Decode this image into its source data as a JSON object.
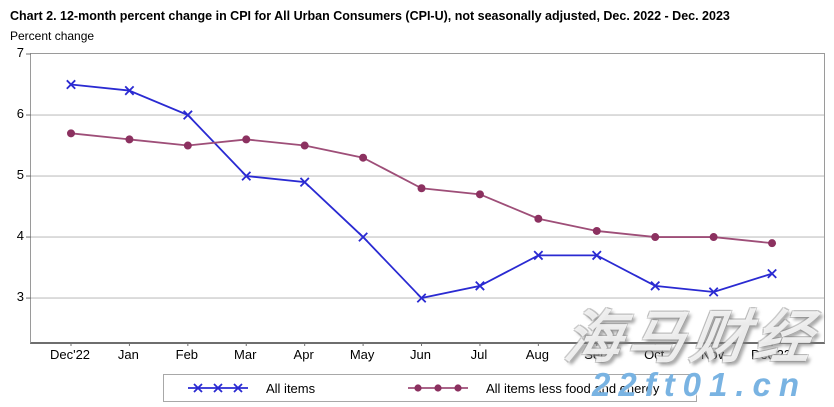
{
  "title": "Chart 2. 12-month percent change in CPI for All Urban Consumers (CPI-U), not seasonally adjusted, Dec. 2022 - Dec. 2023",
  "chart_data": {
    "type": "line",
    "title": "Chart 2. 12-month percent change in CPI for All Urban Consumers (CPI-U), not seasonally adjusted, Dec. 2022 - Dec. 2023",
    "ylabel": "Percent change",
    "xlabel": "",
    "categories": [
      "Dec'22",
      "Jan",
      "Feb",
      "Mar",
      "Apr",
      "May",
      "Jun",
      "Jul",
      "Aug",
      "Sep",
      "Oct",
      "Nov",
      "Dec'23"
    ],
    "series": [
      {
        "name": "All items",
        "marker": "x",
        "color": "#2a2ad2",
        "marker_color": "#2a2ad2",
        "values": [
          6.5,
          6.4,
          6.0,
          5.0,
          4.9,
          4.0,
          3.0,
          3.2,
          3.7,
          3.7,
          3.2,
          3.1,
          3.4
        ]
      },
      {
        "name": "All items less food and energy",
        "marker": "circle",
        "color": "#9e4e78",
        "marker_color": "#8c3160",
        "values": [
          5.7,
          5.6,
          5.5,
          5.6,
          5.5,
          5.3,
          4.8,
          4.7,
          4.3,
          4.1,
          4.0,
          4.0,
          3.9
        ]
      }
    ],
    "yticks": [
      3,
      4,
      5,
      6,
      7
    ],
    "ylim": [
      2.28,
      7
    ],
    "grid": true,
    "gridline_color": "#d4d4d4",
    "legend_position": "bottom"
  },
  "watermark": {
    "brand": "海马财经",
    "url": "22ft01.cn",
    "url_color": "#79b3e2"
  }
}
